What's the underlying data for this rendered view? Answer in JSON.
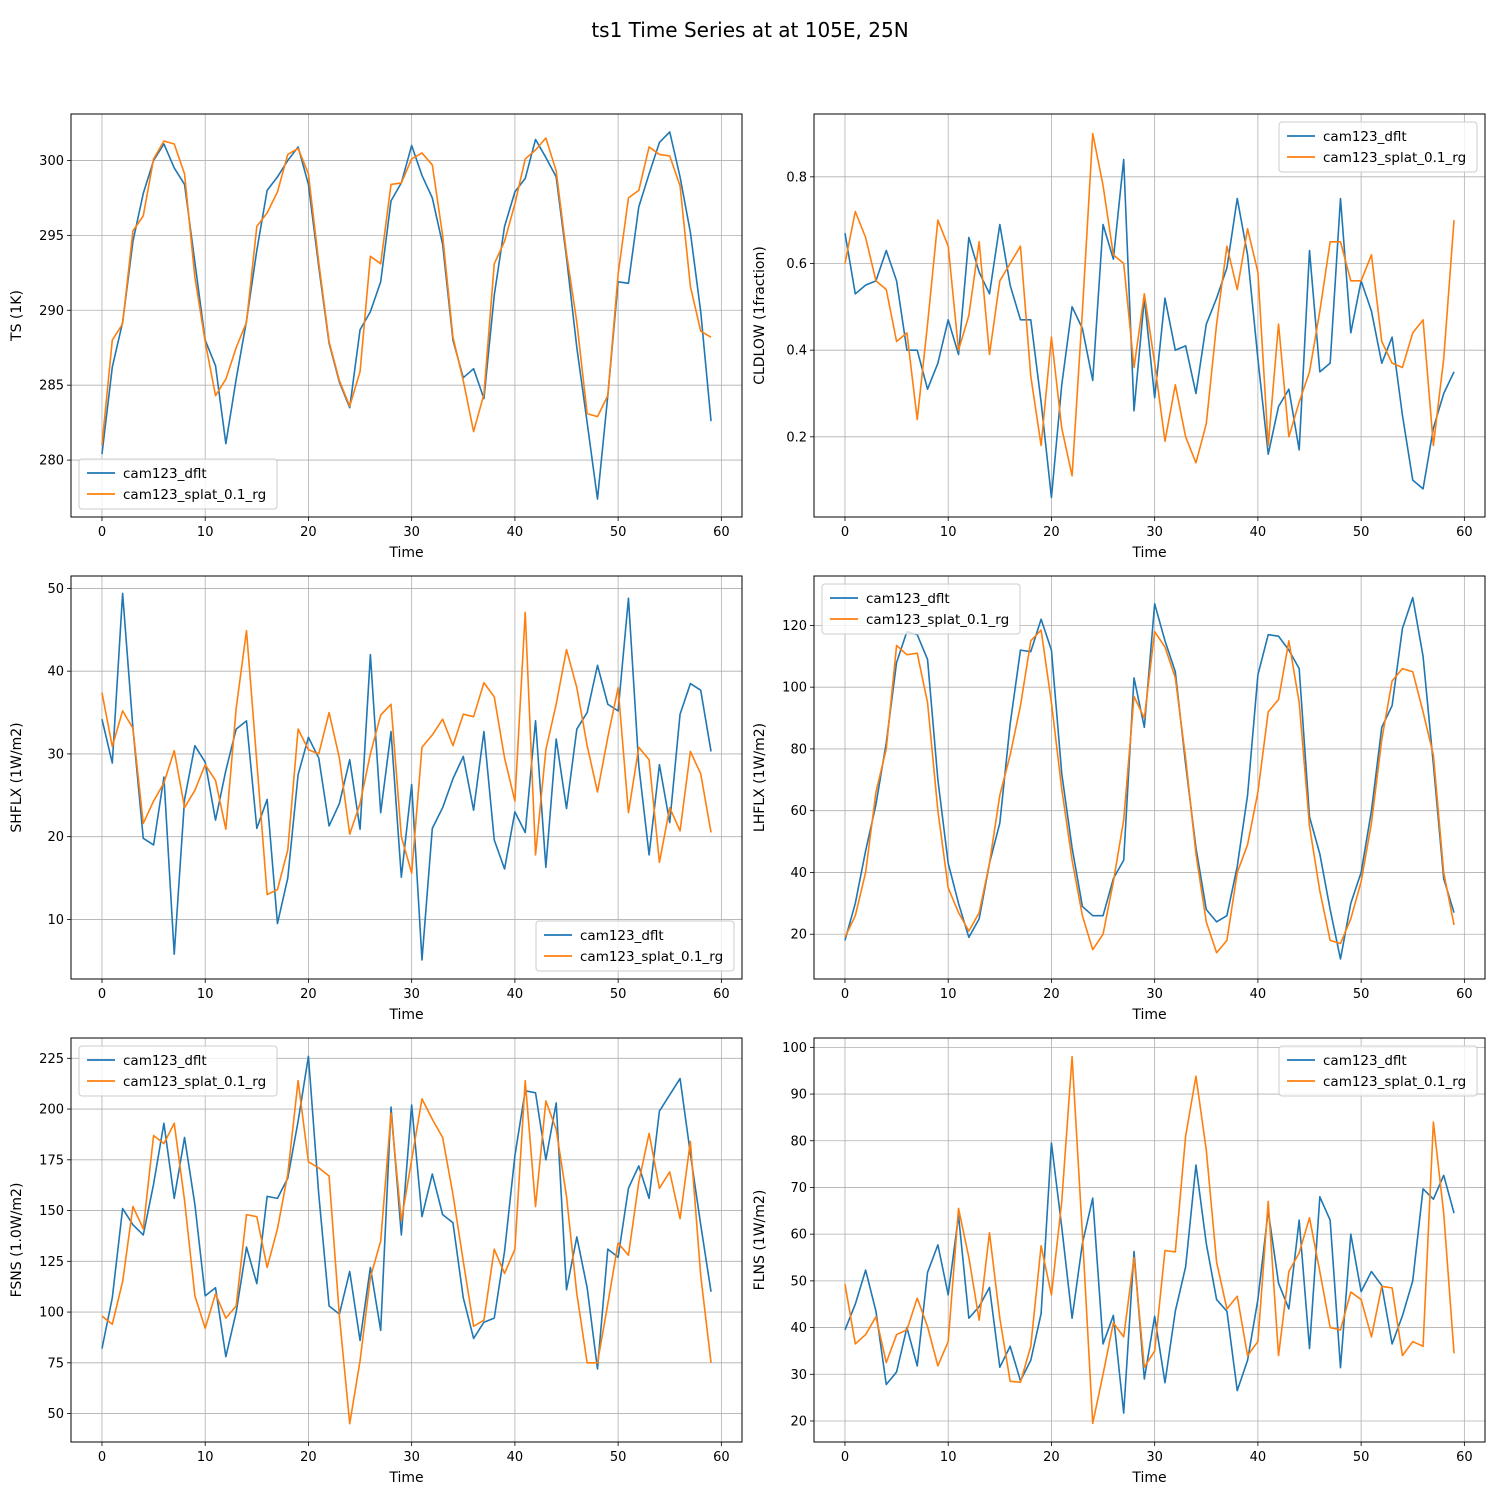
{
  "figure": {
    "title": "ts1 Time Series at at 105E, 25N",
    "colors": {
      "series0": "#1f77b4",
      "series1": "#ff7f0e"
    }
  },
  "chart_data": [
    {
      "type": "line",
      "title": "",
      "xlabel": "Time",
      "ylabel": "TS (1K)",
      "xlim": [
        -3,
        62
      ],
      "ylim": [
        276.2,
        303.1
      ],
      "xticks": [
        0,
        10,
        20,
        30,
        40,
        50,
        60
      ],
      "yticks": [
        280,
        285,
        290,
        295,
        300
      ],
      "grid": true,
      "legend": "lower-left",
      "series": [
        {
          "name": "cam123_dflt",
          "color": "#1f77b4",
          "values": [
            280.4,
            286.2,
            289.2,
            294.6,
            297.8,
            300.0,
            301.1,
            299.5,
            298.4,
            293.2,
            288.0,
            286.3,
            281.1,
            285.4,
            289.3,
            294.0,
            298.0,
            298.9,
            300.0,
            300.9,
            298.4,
            292.9,
            287.8,
            285.2,
            283.5,
            288.7,
            289.9,
            291.9,
            297.3,
            298.5,
            301.0,
            299.0,
            297.5,
            294.4,
            288.0,
            285.5,
            286.1,
            284.1,
            291.0,
            295.6,
            297.9,
            298.8,
            301.4,
            300.2,
            298.9,
            293.5,
            287.5,
            282.5,
            277.4,
            284.3,
            291.9,
            291.8,
            296.9,
            299.1,
            301.2,
            301.9,
            298.9,
            295.2,
            289.9,
            282.6
          ]
        },
        {
          "name": "cam123_splat_0.1_rg",
          "color": "#ff7f0e",
          "values": [
            281.0,
            288.0,
            289.1,
            295.3,
            296.3,
            300.1,
            301.3,
            301.1,
            299.1,
            292.2,
            287.9,
            284.3,
            285.4,
            287.5,
            289.2,
            295.6,
            296.5,
            297.9,
            300.4,
            300.8,
            299.1,
            293.2,
            287.9,
            285.3,
            283.6,
            285.9,
            293.6,
            293.1,
            298.4,
            298.5,
            300.1,
            300.5,
            299.7,
            295.0,
            288.2,
            285.3,
            281.9,
            284.4,
            293.1,
            294.6,
            297.1,
            300.1,
            300.7,
            301.5,
            299.3,
            293.8,
            289.2,
            283.1,
            282.9,
            284.3,
            292.4,
            297.5,
            298.0,
            300.9,
            300.4,
            300.3,
            298.3,
            291.6,
            288.6,
            288.2
          ]
        }
      ]
    },
    {
      "type": "line",
      "title": "",
      "xlabel": "Time",
      "ylabel": "CLDLOW (1fraction)",
      "xlim": [
        -3,
        62
      ],
      "ylim": [
        0.015,
        0.945
      ],
      "xticks": [
        0,
        10,
        20,
        30,
        40,
        50,
        60
      ],
      "yticks": [
        0.2,
        0.4,
        0.6,
        0.8
      ],
      "grid": true,
      "legend": "upper-right",
      "series": [
        {
          "name": "cam123_dflt",
          "color": "#1f77b4",
          "values": [
            0.67,
            0.53,
            0.55,
            0.56,
            0.63,
            0.56,
            0.4,
            0.4,
            0.31,
            0.37,
            0.47,
            0.39,
            0.66,
            0.58,
            0.53,
            0.69,
            0.55,
            0.47,
            0.47,
            0.28,
            0.06,
            0.32,
            0.5,
            0.45,
            0.33,
            0.69,
            0.61,
            0.84,
            0.26,
            0.52,
            0.29,
            0.52,
            0.4,
            0.41,
            0.3,
            0.46,
            0.52,
            0.59,
            0.75,
            0.62,
            0.38,
            0.16,
            0.27,
            0.31,
            0.17,
            0.63,
            0.35,
            0.37,
            0.75,
            0.44,
            0.56,
            0.49,
            0.37,
            0.43,
            0.25,
            0.1,
            0.08,
            0.22,
            0.3,
            0.35
          ]
        },
        {
          "name": "cam123_splat_0.1_rg",
          "color": "#ff7f0e",
          "values": [
            0.6,
            0.72,
            0.66,
            0.56,
            0.54,
            0.42,
            0.44,
            0.24,
            0.46,
            0.7,
            0.64,
            0.4,
            0.48,
            0.65,
            0.39,
            0.56,
            0.6,
            0.64,
            0.34,
            0.18,
            0.43,
            0.22,
            0.11,
            0.49,
            0.9,
            0.78,
            0.62,
            0.6,
            0.36,
            0.53,
            0.37,
            0.19,
            0.32,
            0.2,
            0.14,
            0.23,
            0.46,
            0.64,
            0.54,
            0.68,
            0.58,
            0.18,
            0.46,
            0.2,
            0.28,
            0.35,
            0.49,
            0.65,
            0.65,
            0.56,
            0.56,
            0.62,
            0.42,
            0.37,
            0.36,
            0.44,
            0.47,
            0.18,
            0.38,
            0.7
          ]
        }
      ]
    },
    {
      "type": "line",
      "title": "",
      "xlabel": "Time",
      "ylabel": "SHFLX (1W/m2)",
      "xlim": [
        -3,
        62
      ],
      "ylim": [
        2.8,
        51.5
      ],
      "xticks": [
        0,
        10,
        20,
        30,
        40,
        50,
        60
      ],
      "yticks": [
        10,
        20,
        30,
        40,
        50
      ],
      "grid": true,
      "legend": "lower-right",
      "series": [
        {
          "name": "cam123_dflt",
          "color": "#1f77b4",
          "values": [
            34.2,
            28.9,
            49.4,
            33.1,
            19.8,
            19.0,
            27.2,
            5.8,
            24.5,
            31.0,
            29.0,
            22.0,
            28.0,
            33.0,
            34.0,
            21.0,
            24.5,
            9.5,
            15.0,
            27.5,
            32.0,
            29.5,
            21.3,
            24.0,
            29.3,
            20.9,
            42.0,
            22.9,
            32.7,
            15.1,
            26.3,
            5.1,
            21.0,
            23.5,
            27.0,
            29.7,
            23.2,
            32.7,
            19.6,
            16.1,
            23.0,
            20.5,
            34.0,
            16.3,
            31.8,
            23.4,
            33.0,
            35.0,
            40.7,
            36.0,
            35.2,
            48.8,
            28.6,
            17.8,
            28.7,
            21.7,
            34.8,
            38.5,
            37.7,
            30.3
          ]
        },
        {
          "name": "cam123_splat_0.1_rg",
          "color": "#ff7f0e",
          "values": [
            37.4,
            30.9,
            35.2,
            33.1,
            21.6,
            24.3,
            26.5,
            30.4,
            23.5,
            25.6,
            28.7,
            26.8,
            20.9,
            35.5,
            44.9,
            29.0,
            13.0,
            13.6,
            18.4,
            33.0,
            30.5,
            30.0,
            35.0,
            29.5,
            20.3,
            24.0,
            30.0,
            34.7,
            36.0,
            20.0,
            15.6,
            30.8,
            32.3,
            34.2,
            31.0,
            34.8,
            34.5,
            38.6,
            36.9,
            29.5,
            24.3,
            47.1,
            17.8,
            30.5,
            36.0,
            42.6,
            38.0,
            31.0,
            25.4,
            32.0,
            38.0,
            22.9,
            30.8,
            29.3,
            16.9,
            23.5,
            20.7,
            30.3,
            27.6,
            20.5
          ]
        }
      ]
    },
    {
      "type": "line",
      "title": "",
      "xlabel": "Time",
      "ylabel": "LHFLX (1W/m2)",
      "xlim": [
        -3,
        62
      ],
      "ylim": [
        5.5,
        136
      ],
      "xticks": [
        0,
        10,
        20,
        30,
        40,
        50,
        60
      ],
      "yticks": [
        20,
        40,
        60,
        80,
        100,
        120
      ],
      "grid": true,
      "legend": "upper-left",
      "series": [
        {
          "name": "cam123_dflt",
          "color": "#1f77b4",
          "values": [
            18.0,
            30.0,
            47.0,
            62.0,
            82.0,
            108.0,
            118.0,
            117.0,
            109.0,
            70.0,
            43.0,
            30.0,
            19.0,
            25.0,
            43.0,
            56.0,
            88.0,
            112.0,
            111.5,
            122.0,
            112.0,
            72.0,
            48.0,
            29.0,
            26.0,
            26.0,
            38.0,
            44.0,
            103.0,
            87.0,
            127.0,
            115.0,
            105.0,
            75.0,
            48.0,
            28.0,
            24.0,
            26.0,
            42.0,
            65.0,
            104.0,
            117.0,
            116.5,
            112.0,
            106.0,
            58.0,
            46.0,
            28.0,
            12.0,
            30.0,
            40.0,
            60.0,
            87.0,
            94.0,
            119.0,
            129.0,
            110.0,
            75.0,
            38.0,
            27.0
          ]
        },
        {
          "name": "cam123_splat_0.1_rg",
          "color": "#ff7f0e",
          "values": [
            19.0,
            26.0,
            40.0,
            66.0,
            80.0,
            113.5,
            110.5,
            111.0,
            95.0,
            60.0,
            35.0,
            27.0,
            21.0,
            27.0,
            43.0,
            65.0,
            78.0,
            94.0,
            115.0,
            118.5,
            95.0,
            67.0,
            44.0,
            26.0,
            15.0,
            20.0,
            37.0,
            57.0,
            97.0,
            90.0,
            118.0,
            113.0,
            103.0,
            77.0,
            46.0,
            24.0,
            14.0,
            18.0,
            40.0,
            49.0,
            66.0,
            92.0,
            96.0,
            115.0,
            95.0,
            55.0,
            34.0,
            18.0,
            17.0,
            25.0,
            37.0,
            56.0,
            83.0,
            102.0,
            106.0,
            105.0,
            92.0,
            78.0,
            40.0,
            23.0
          ]
        }
      ]
    },
    {
      "type": "line",
      "title": "",
      "xlabel": "Time",
      "ylabel": "FSNS (1.0W/m2)",
      "xlim": [
        -3,
        62
      ],
      "ylim": [
        36,
        235
      ],
      "xticks": [
        0,
        10,
        20,
        30,
        40,
        50,
        60
      ],
      "yticks": [
        50,
        75,
        100,
        125,
        150,
        175,
        200,
        225
      ],
      "grid": true,
      "legend": "upper-left",
      "series": [
        {
          "name": "cam123_dflt",
          "color": "#1f77b4",
          "values": [
            82,
            107,
            151,
            143,
            138,
            163,
            193,
            156,
            186,
            153,
            108,
            112,
            78,
            100,
            132,
            114,
            157,
            156,
            166,
            194,
            226,
            158,
            103,
            99,
            120,
            86,
            122,
            91,
            201,
            138,
            202,
            147,
            168,
            148,
            144,
            107,
            87,
            95,
            97,
            130,
            177,
            209,
            208,
            175,
            203,
            111,
            137,
            112,
            72,
            131,
            127,
            161,
            172,
            156,
            199,
            207,
            215,
            178,
            143,
            110
          ]
        },
        {
          "name": "cam123_splat_0.1_rg",
          "color": "#ff7f0e",
          "values": [
            98,
            94,
            115,
            152,
            141,
            187,
            183,
            193,
            155,
            108,
            92,
            109,
            97,
            103,
            148,
            147,
            122,
            141,
            168,
            214,
            174,
            171,
            167,
            98,
            45,
            76,
            117,
            135,
            198,
            145,
            175,
            205,
            195,
            186,
            158,
            125,
            93,
            96,
            131,
            119,
            131,
            214,
            152,
            204,
            190,
            157,
            109,
            75,
            75,
            104,
            134,
            128,
            164,
            188,
            161,
            169,
            146,
            184,
            118,
            75
          ]
        }
      ]
    },
    {
      "type": "line",
      "title": "",
      "xlabel": "Time",
      "ylabel": "FLNS (1W/m2)",
      "xlim": [
        -3,
        62
      ],
      "ylim": [
        15.5,
        102
      ],
      "xticks": [
        0,
        10,
        20,
        30,
        40,
        50,
        60
      ],
      "yticks": [
        20,
        30,
        40,
        50,
        60,
        70,
        80,
        90,
        100
      ],
      "grid": true,
      "legend": "upper-right",
      "series": [
        {
          "name": "cam123_dflt",
          "color": "#1f77b4",
          "values": [
            39.5,
            45.0,
            52.3,
            43.5,
            27.8,
            30.5,
            40.0,
            31.8,
            51.8,
            57.7,
            47.0,
            64.0,
            42.0,
            44.5,
            48.6,
            31.5,
            36.0,
            28.6,
            33.0,
            43.0,
            79.5,
            61.5,
            42.0,
            58.0,
            67.7,
            36.5,
            42.6,
            21.7,
            56.3,
            29.0,
            42.4,
            28.2,
            43.5,
            53.0,
            74.8,
            58.0,
            46.0,
            43.5,
            26.5,
            33.0,
            46.0,
            65.0,
            49.5,
            44.0,
            63.0,
            35.5,
            68.0,
            63.0,
            31.4,
            60.0,
            47.7,
            52.0,
            49.0,
            36.5,
            42.5,
            50.0,
            69.7,
            67.5,
            72.6,
            64.5
          ]
        },
        {
          "name": "cam123_splat_0.1_rg",
          "color": "#ff7f0e",
          "values": [
            49.3,
            36.5,
            38.5,
            42.3,
            32.5,
            38.5,
            39.5,
            46.3,
            40.2,
            31.8,
            37.0,
            65.5,
            55.0,
            41.6,
            60.3,
            42.0,
            28.5,
            28.3,
            36.0,
            57.5,
            47.0,
            67.0,
            98.0,
            60.0,
            19.5,
            30.0,
            41.0,
            38.0,
            55.0,
            31.5,
            35.0,
            56.5,
            56.2,
            81.0,
            93.8,
            78.0,
            54.0,
            44.0,
            46.7,
            34.0,
            37.0,
            67.0,
            34.0,
            52.0,
            56.0,
            63.5,
            52.0,
            40.0,
            39.5,
            47.6,
            46.0,
            38.0,
            48.8,
            48.5,
            34.0,
            37.0,
            36.0,
            84.0,
            64.5,
            34.5
          ]
        }
      ]
    }
  ]
}
